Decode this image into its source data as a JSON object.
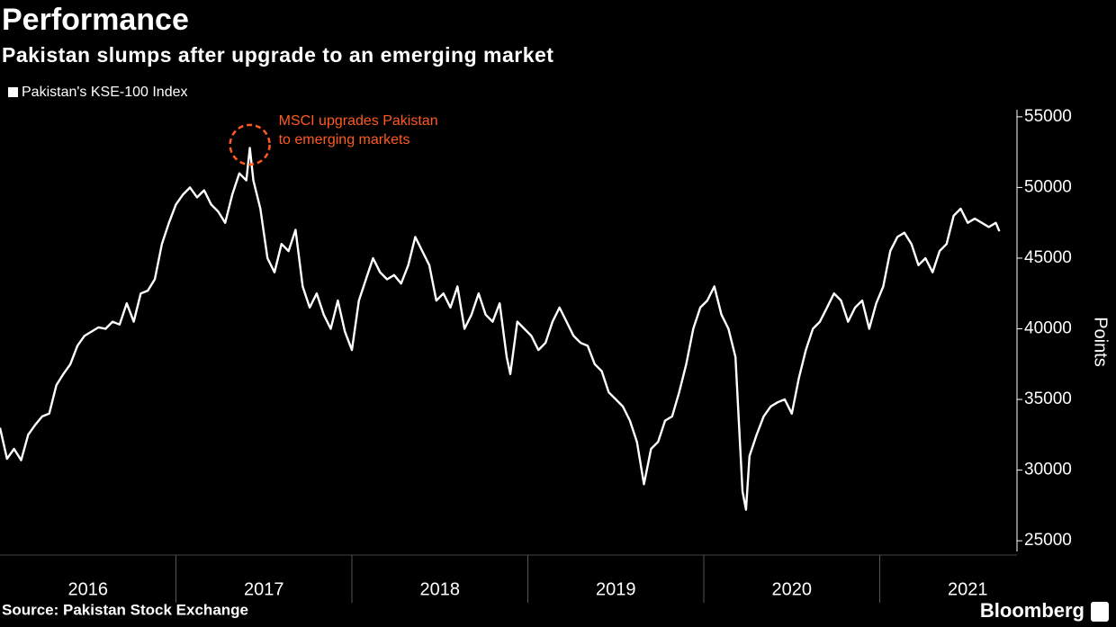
{
  "chart_data": {
    "type": "line",
    "title": "Performance",
    "subtitle": "Pakistan slumps after upgrade to an emerging market",
    "y_label": "Points",
    "source": "Source: Pakistan Stock Exchange",
    "brand": "Bloomberg",
    "legend_position": "top-left",
    "annotation": {
      "lines": [
        "MSCI upgrades Pakistan",
        "to emerging markets"
      ],
      "x": 2017.42,
      "y": 52900,
      "color": "#ff5a1f"
    },
    "xlim": [
      2016,
      2021.78
    ],
    "xticks": [
      {
        "value": 2016.5,
        "label": "2016"
      },
      {
        "value": 2017.5,
        "label": "2017"
      },
      {
        "value": 2018.5,
        "label": "2018"
      },
      {
        "value": 2019.5,
        "label": "2019"
      },
      {
        "value": 2020.5,
        "label": "2020"
      },
      {
        "value": 2021.5,
        "label": "2021"
      }
    ],
    "ylim": [
      24500,
      55500
    ],
    "yticks": [
      25000,
      30000,
      35000,
      40000,
      45000,
      50000,
      55000
    ],
    "x": [
      2016.0,
      2016.04,
      2016.08,
      2016.12,
      2016.16,
      2016.2,
      2016.24,
      2016.28,
      2016.32,
      2016.36,
      2016.4,
      2016.44,
      2016.48,
      2016.52,
      2016.56,
      2016.6,
      2016.64,
      2016.68,
      2016.72,
      2016.76,
      2016.8,
      2016.84,
      2016.88,
      2016.92,
      2016.96,
      2017.0,
      2017.04,
      2017.08,
      2017.12,
      2017.16,
      2017.2,
      2017.24,
      2017.28,
      2017.32,
      2017.36,
      2017.4,
      2017.42,
      2017.44,
      2017.48,
      2017.52,
      2017.56,
      2017.6,
      2017.64,
      2017.68,
      2017.72,
      2017.76,
      2017.8,
      2017.84,
      2017.88,
      2017.92,
      2017.96,
      2018.0,
      2018.04,
      2018.08,
      2018.12,
      2018.16,
      2018.2,
      2018.24,
      2018.28,
      2018.32,
      2018.36,
      2018.4,
      2018.44,
      2018.48,
      2018.52,
      2018.56,
      2018.6,
      2018.64,
      2018.68,
      2018.72,
      2018.76,
      2018.8,
      2018.84,
      2018.88,
      2018.9,
      2018.94,
      2018.98,
      2019.02,
      2019.06,
      2019.1,
      2019.14,
      2019.18,
      2019.22,
      2019.26,
      2019.3,
      2019.34,
      2019.38,
      2019.42,
      2019.46,
      2019.5,
      2019.54,
      2019.58,
      2019.62,
      2019.66,
      2019.7,
      2019.74,
      2019.78,
      2019.82,
      2019.86,
      2019.9,
      2019.94,
      2019.98,
      2020.02,
      2020.06,
      2020.1,
      2020.14,
      2020.18,
      2020.22,
      2020.24,
      2020.26,
      2020.3,
      2020.34,
      2020.38,
      2020.42,
      2020.46,
      2020.5,
      2020.54,
      2020.58,
      2020.62,
      2020.66,
      2020.7,
      2020.74,
      2020.78,
      2020.82,
      2020.86,
      2020.9,
      2020.94,
      2020.98,
      2021.02,
      2021.06,
      2021.1,
      2021.14,
      2021.18,
      2021.22,
      2021.26,
      2021.3,
      2021.34,
      2021.38,
      2021.42,
      2021.46,
      2021.5,
      2021.54,
      2021.58,
      2021.62,
      2021.66,
      2021.68
    ],
    "series": [
      {
        "name": "Pakistan's KSE-100 Index",
        "color": "#ffffff",
        "values": [
          33000,
          30800,
          31500,
          30700,
          32500,
          33200,
          33800,
          34000,
          36000,
          36800,
          37500,
          38800,
          39500,
          39800,
          40100,
          40000,
          40500,
          40300,
          41800,
          40500,
          42500,
          42700,
          43500,
          46000,
          47500,
          48800,
          49500,
          50000,
          49300,
          49800,
          48800,
          48300,
          47500,
          49500,
          51000,
          50500,
          52800,
          50500,
          48500,
          45000,
          44000,
          46000,
          45500,
          47000,
          43000,
          41500,
          42500,
          41000,
          40000,
          42000,
          39800,
          38500,
          42000,
          43500,
          45000,
          44000,
          43500,
          43800,
          43200,
          44500,
          46500,
          45500,
          44500,
          42000,
          42500,
          41500,
          43000,
          40000,
          41000,
          42500,
          41000,
          40500,
          41800,
          38000,
          36800,
          40500,
          40000,
          39500,
          38500,
          39000,
          40500,
          41500,
          40500,
          39500,
          39000,
          38800,
          37500,
          37000,
          35500,
          35000,
          34500,
          33500,
          32000,
          29000,
          31500,
          32000,
          33500,
          33800,
          35500,
          37500,
          40000,
          41500,
          42000,
          43000,
          41000,
          40000,
          38000,
          28500,
          27200,
          31000,
          32500,
          33800,
          34500,
          34800,
          35000,
          34000,
          36500,
          38500,
          40000,
          40500,
          41500,
          42500,
          42000,
          40500,
          41500,
          42000,
          40000,
          41800,
          43000,
          45500,
          46500,
          46800,
          46000,
          44500,
          45000,
          44000,
          45500,
          46000,
          48000,
          48500,
          47500,
          47800,
          47500,
          47200,
          47500,
          46900
        ]
      }
    ]
  }
}
